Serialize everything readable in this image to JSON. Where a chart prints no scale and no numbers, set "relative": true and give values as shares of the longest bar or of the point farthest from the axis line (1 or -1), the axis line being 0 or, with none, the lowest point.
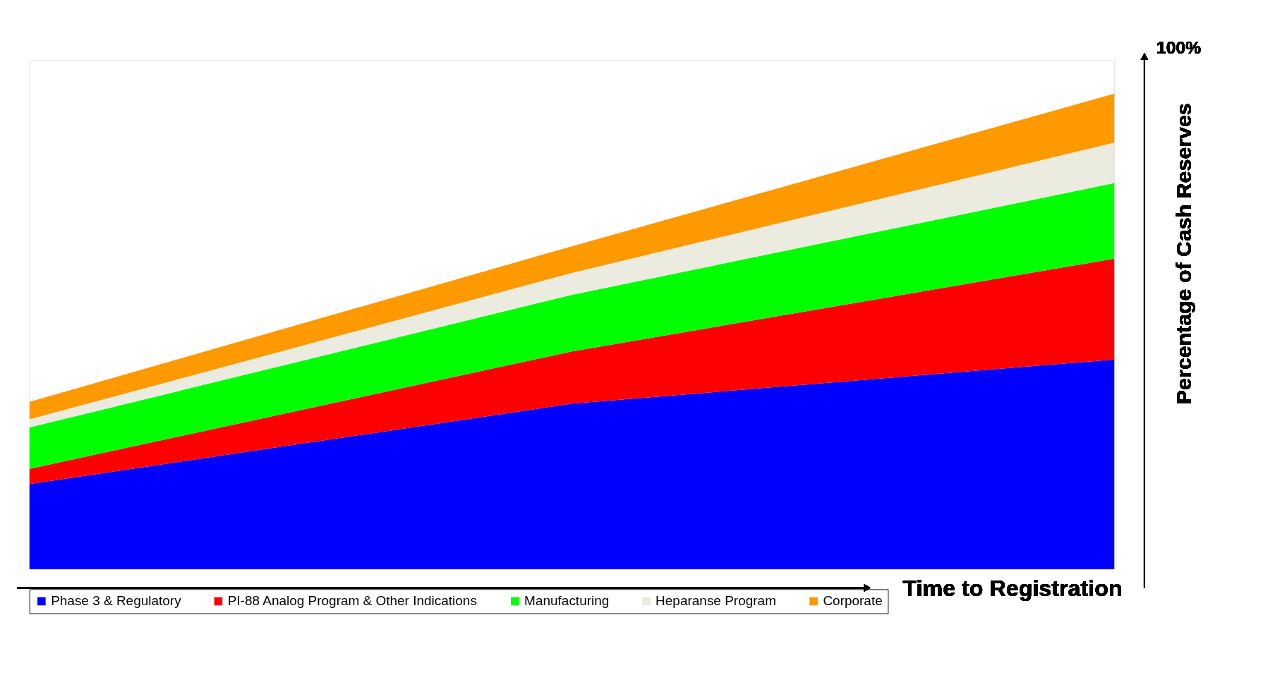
{
  "chart_data": {
    "type": "area",
    "stacked": true,
    "relative": true,
    "xlabel": "Time to Registration",
    "ylabel": "Percentage of Cash Reserves",
    "annotations": [
      "100%"
    ],
    "legend": "bottom",
    "categories": [
      null,
      null,
      null
    ],
    "series": [
      {
        "name": "Phase 3 & Regulatory",
        "color": "#0000ff",
        "values": [
          0.179,
          0.348,
          0.441
        ]
      },
      {
        "name": "PI-88 Analog Program & Other Indications",
        "color": "#ff0000",
        "values": [
          0.032,
          0.11,
          0.212
        ]
      },
      {
        "name": "Manufacturing",
        "color": "#00ff00",
        "values": [
          0.087,
          0.119,
          0.159
        ]
      },
      {
        "name": "Heparanse Program",
        "color": "#ecebe0",
        "values": [
          0.017,
          0.046,
          0.085
        ]
      },
      {
        "name": "Corporate",
        "color": "#ff9900",
        "values": [
          0.037,
          0.056,
          0.103
        ]
      }
    ]
  }
}
